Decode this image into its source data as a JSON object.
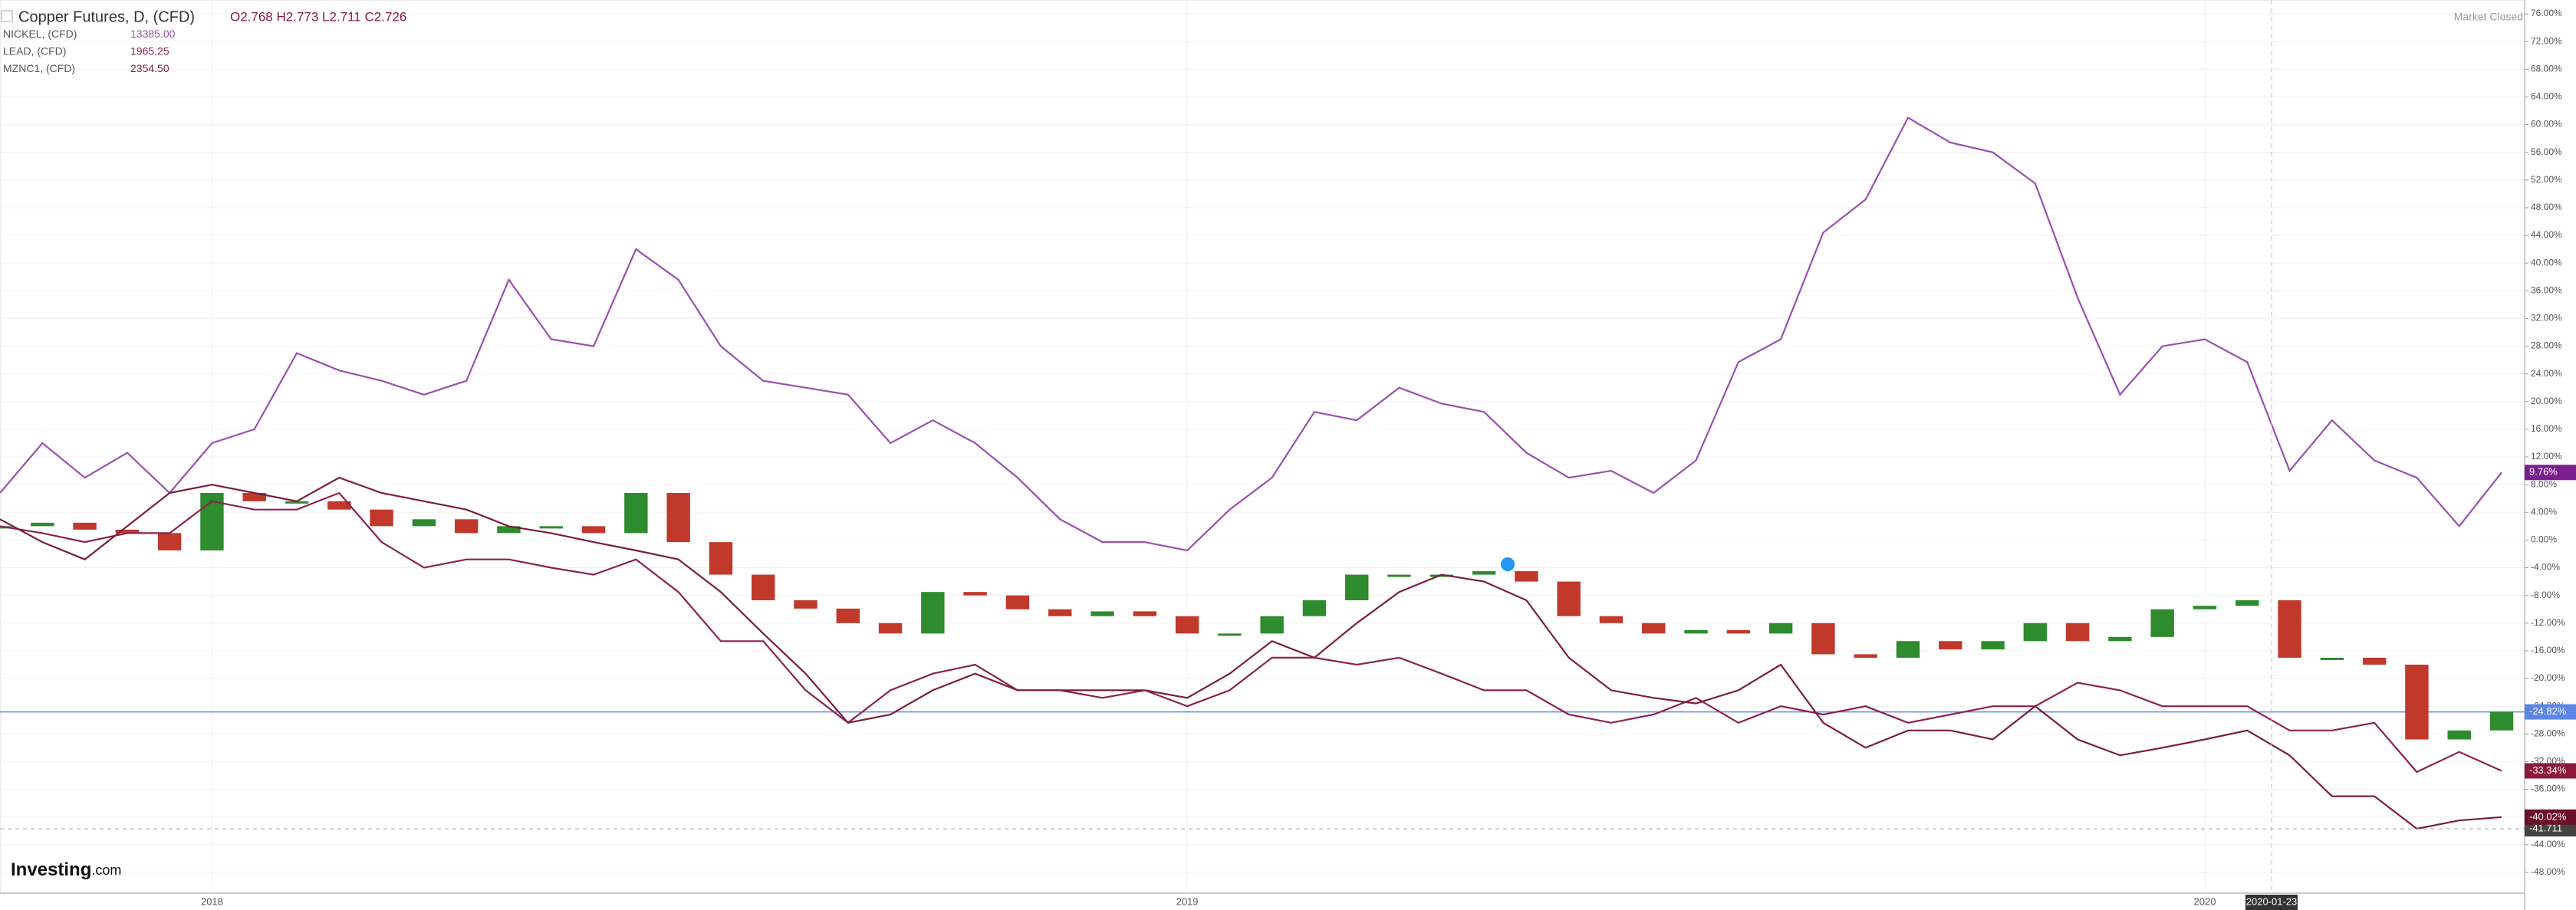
{
  "chart_data": {
    "type": "line",
    "title": "Copper Futures, D, (CFD)",
    "ohlc": "O2.768 H2.773 L2.711 C2.726",
    "market_status": "Market Closed",
    "logo": "Investing",
    "logo_suffix": ".com",
    "crosshair_date": "2020-01-23",
    "hline": {
      "value": -41.711,
      "label": "-41.711"
    },
    "categories": [
      null,
      null,
      null,
      null,
      null,
      "2018",
      null,
      null,
      null,
      null,
      null,
      null,
      null,
      null,
      null,
      null,
      null,
      null,
      null,
      null,
      null,
      null,
      null,
      null,
      null,
      null,
      null,
      null,
      "2019",
      null,
      null,
      null,
      null,
      null,
      null,
      null,
      null,
      null,
      null,
      null,
      null,
      null,
      null,
      null,
      null,
      null,
      null,
      null,
      null,
      null,
      null,
      null,
      "2020",
      null,
      null,
      null,
      null,
      null,
      null,
      null
    ],
    "series": [
      {
        "style": "candles",
        "color": "#2e8b2e",
        "down_color": "#c0392b",
        "last_label": "-24.82%",
        "label_color": "#5b86e5",
        "values": [
          2,
          2.5,
          1.5,
          1,
          -1.5,
          6.8,
          5.6,
          5.6,
          4.4,
          2,
          3,
          1,
          2,
          2,
          1,
          6.8,
          -0.3,
          -5,
          -8.7,
          -9.9,
          -12,
          -13.5,
          -7.5,
          -8,
          -10,
          -11,
          -10.3,
          -11,
          -13.5,
          -13.5,
          -11,
          -8.7,
          -5,
          -5,
          -5,
          -4.5,
          -6,
          -11,
          -12,
          -13.5,
          -13,
          -13.5,
          -12,
          -16.5,
          -17,
          -14.6,
          -15.8,
          -14.6,
          -12,
          -14.6,
          -14,
          -10,
          -9.5,
          -8.7,
          -17,
          -17,
          -18,
          -28.8,
          -27.5,
          -24.82
        ]
      },
      {
        "name": "NICKEL, (CFD)",
        "price": "13385.00",
        "color": "#9b4fb0",
        "last_label": "9.76%",
        "label_color": "#7b1e8f",
        "values": [
          6.8,
          14,
          9,
          12.6,
          6.8,
          14,
          16,
          27,
          24.5,
          23,
          21,
          23,
          37.6,
          29,
          28,
          42,
          37.6,
          28,
          23,
          22,
          21,
          14,
          17.3,
          14,
          9,
          3,
          -0.3,
          -0.3,
          -1.5,
          4.4,
          9,
          18.5,
          17.3,
          22,
          19.7,
          18.5,
          12.6,
          9,
          10,
          6.8,
          11.5,
          25.7,
          29,
          44.4,
          49.2,
          61,
          57.4,
          56,
          51.5,
          35,
          21,
          28,
          29,
          25.7,
          10,
          17.3,
          11.5,
          9,
          2,
          9.76
        ]
      },
      {
        "name": "LEAD, (CFD)",
        "price": "1965.25",
        "color": "#8b2252",
        "last_label": "-33.34%",
        "label_color": "#8b1a3a",
        "values": [
          2,
          1,
          -0.3,
          1,
          1,
          5.6,
          4.4,
          4.4,
          6.8,
          -0.3,
          -4,
          -2.8,
          -2.8,
          -4,
          -5,
          -2.8,
          -7.5,
          -14.6,
          -14.6,
          -21.7,
          -26.4,
          -21.7,
          -19.3,
          -18,
          -21.7,
          -21.7,
          -22.8,
          -21.7,
          -24,
          -21.7,
          -17,
          -17,
          -18,
          -17,
          -19.3,
          -21.7,
          -21.7,
          -25.2,
          -26.4,
          -25.2,
          -22.8,
          -26.4,
          -24,
          -25.2,
          -24,
          -26.4,
          -25.2,
          -24,
          -24,
          -20.6,
          -21.7,
          -24,
          -24,
          -24,
          -27.5,
          -27.5,
          -26.4,
          -33.5,
          -30.6,
          -33.34
        ]
      },
      {
        "name": "MZNC1, (CFD)",
        "price": "2354.50",
        "color": "#7a1f3d",
        "last_label": "-40.02%",
        "label_color": "#6a0f2a",
        "values": [
          3,
          -0.3,
          -2.8,
          2,
          6.8,
          8,
          6.8,
          5.6,
          9,
          6.8,
          5.6,
          4.4,
          2,
          1,
          -0.3,
          -1.5,
          -2.8,
          -7.5,
          -13.5,
          -19.3,
          -26.4,
          -25.2,
          -21.7,
          -19.3,
          -21.7,
          -21.7,
          -21.7,
          -21.7,
          -22.8,
          -19.3,
          -14.6,
          -17,
          -12,
          -7.5,
          -5,
          -6,
          -8.7,
          -17,
          -21.7,
          -22.8,
          -23.6,
          -21.7,
          -18,
          -26.4,
          -30,
          -27.5,
          -27.5,
          -28.8,
          -24,
          -28.8,
          -31.1,
          -30,
          -28.8,
          -27.5,
          -31.1,
          -37,
          -37,
          -41.7,
          -40.5,
          -40.02
        ]
      }
    ],
    "ylim": [
      -51,
      78
    ],
    "yticks": [
      {
        "value": -48,
        "label": "-48.00%"
      },
      {
        "value": -44,
        "label": "-44.00%"
      },
      {
        "value": -40,
        "label": "-40.00%"
      },
      {
        "value": -36,
        "label": "-36.00%"
      },
      {
        "value": -32,
        "label": "-32.00%"
      },
      {
        "value": -28,
        "label": "-28.00%"
      },
      {
        "value": -24,
        "label": "-24.00%"
      },
      {
        "value": -20,
        "label": "-20.00%"
      },
      {
        "value": -16,
        "label": "-16.00%"
      },
      {
        "value": -12,
        "label": "-12.00%"
      },
      {
        "value": -8,
        "label": "-8.00%"
      },
      {
        "value": -4,
        "label": "-4.00%"
      },
      {
        "value": 0,
        "label": "0.00%"
      },
      {
        "value": 4,
        "label": "4.00%"
      },
      {
        "value": 8,
        "label": "8.00%"
      },
      {
        "value": 12,
        "label": "12.00%"
      },
      {
        "value": 16,
        "label": "16.00%"
      },
      {
        "value": 20,
        "label": "20.00%"
      },
      {
        "value": 24,
        "label": "24.00%"
      },
      {
        "value": 28,
        "label": "28.00%"
      },
      {
        "value": 32,
        "label": "32.00%"
      },
      {
        "value": 36,
        "label": "36.00%"
      },
      {
        "value": 40,
        "label": "40.00%"
      },
      {
        "value": 44,
        "label": "44.00%"
      },
      {
        "value": 48,
        "label": "48.00%"
      },
      {
        "value": 52,
        "label": "52.00%"
      },
      {
        "value": 56,
        "label": "56.00%"
      },
      {
        "value": 60,
        "label": "60.00%"
      },
      {
        "value": 64,
        "label": "64.00%"
      },
      {
        "value": 68,
        "label": "68.00%"
      },
      {
        "value": 72,
        "label": "72.00%"
      },
      {
        "value": 76,
        "label": "76.00%"
      }
    ],
    "grid": true
  }
}
